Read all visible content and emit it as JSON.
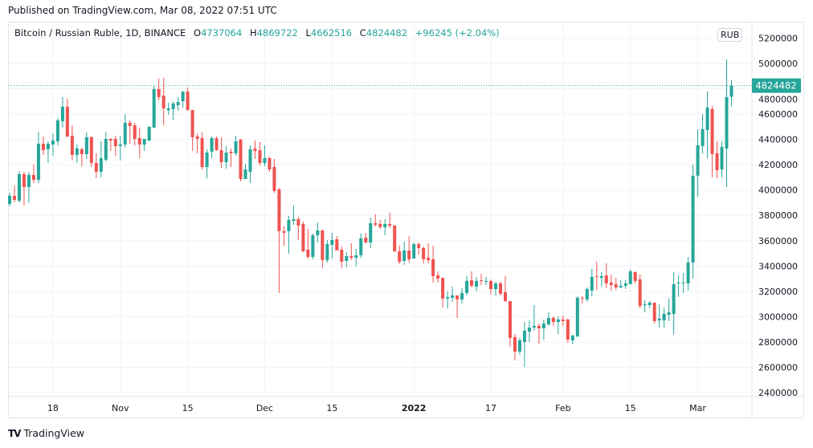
{
  "published": "Published on TradingView.com, Mar 08, 2022 07:51 UTC",
  "legend": {
    "symbol": "Bitcoin / Russian Ruble, 1D, BINANCE",
    "open_label": "O",
    "open": "4737064",
    "high_label": "H",
    "high": "4869722",
    "low_label": "L",
    "low": "4662516",
    "close_label": "C",
    "close": "4824482",
    "change": "+96245 (+2.04%)"
  },
  "currency_badge": "RUB",
  "last_price_label": "4824482",
  "footer": {
    "logo": "TV",
    "brand": "TradingView"
  },
  "colors": {
    "up": "#26a69a",
    "down": "#ef5350",
    "grid": "#f0f3fa",
    "text": "#131722"
  },
  "chart_data": {
    "type": "candlestick",
    "interval": "1D",
    "ylim": [
      2400000,
      5200000
    ],
    "y_ticks": [
      "2400000",
      "2600000",
      "2800000",
      "3000000",
      "3200000",
      "3400000",
      "3600000",
      "3800000",
      "4000000",
      "4200000",
      "4400000",
      "4600000",
      "4800000",
      "5000000",
      "5200000"
    ],
    "x_ticks": [
      {
        "label": "18",
        "date": "2021-10-18",
        "bold": false
      },
      {
        "label": "Nov",
        "date": "2021-11-01",
        "bold": false
      },
      {
        "label": "15",
        "date": "2021-11-15",
        "bold": false
      },
      {
        "label": "Dec",
        "date": "2021-12-01",
        "bold": false
      },
      {
        "label": "15",
        "date": "2021-12-15",
        "bold": false
      },
      {
        "label": "2022",
        "date": "2022-01-01",
        "bold": true
      },
      {
        "label": "17",
        "date": "2022-01-17",
        "bold": false
      },
      {
        "label": "Feb",
        "date": "2022-02-01",
        "bold": false
      },
      {
        "label": "15",
        "date": "2022-02-15",
        "bold": false
      },
      {
        "label": "Mar",
        "date": "2022-03-01",
        "bold": false
      }
    ],
    "last_price": 4824482,
    "candles_format": [
      "date",
      "open",
      "high",
      "low",
      "close"
    ],
    "candles": [
      [
        "2021-10-09",
        3891000,
        3979000,
        3872000,
        3954000
      ],
      [
        "2021-10-10",
        3954000,
        4036000,
        3903000,
        3922000
      ],
      [
        "2021-10-11",
        3916000,
        4150000,
        3903000,
        4125000
      ],
      [
        "2021-10-12",
        4125000,
        4144000,
        3878000,
        4024000
      ],
      [
        "2021-10-13",
        4024000,
        4144000,
        3897000,
        4119000
      ],
      [
        "2021-10-14",
        4119000,
        4201000,
        4055000,
        4081000
      ],
      [
        "2021-10-15",
        4081000,
        4461000,
        4055000,
        4366000
      ],
      [
        "2021-10-16",
        4366000,
        4423000,
        4277000,
        4315000
      ],
      [
        "2021-10-17",
        4322000,
        4385000,
        4214000,
        4366000
      ],
      [
        "2021-10-18",
        4360000,
        4448000,
        4271000,
        4391000
      ],
      [
        "2021-10-19",
        4385000,
        4569000,
        4353000,
        4550000
      ],
      [
        "2021-10-20",
        4543000,
        4734000,
        4493000,
        4658000
      ],
      [
        "2021-10-21",
        4658000,
        4721000,
        4417000,
        4423000
      ],
      [
        "2021-10-22",
        4429000,
        4512000,
        4233000,
        4277000
      ],
      [
        "2021-10-23",
        4277000,
        4360000,
        4214000,
        4328000
      ],
      [
        "2021-10-24",
        4322000,
        4334000,
        4188000,
        4284000
      ],
      [
        "2021-10-25",
        4284000,
        4455000,
        4246000,
        4417000
      ],
      [
        "2021-10-26",
        4417000,
        4423000,
        4182000,
        4214000
      ],
      [
        "2021-10-27",
        4214000,
        4290000,
        4093000,
        4144000
      ],
      [
        "2021-10-28",
        4144000,
        4385000,
        4100000,
        4252000
      ],
      [
        "2021-10-29",
        4239000,
        4455000,
        4226000,
        4404000
      ],
      [
        "2021-10-30",
        4404000,
        4410000,
        4309000,
        4391000
      ],
      [
        "2021-10-31",
        4404000,
        4429000,
        4271000,
        4347000
      ],
      [
        "2021-11-01",
        4347000,
        4429000,
        4233000,
        4360000
      ],
      [
        "2021-11-02",
        4360000,
        4601000,
        4334000,
        4531000
      ],
      [
        "2021-11-03",
        4531000,
        4550000,
        4366000,
        4505000
      ],
      [
        "2021-11-04",
        4512000,
        4531000,
        4353000,
        4404000
      ],
      [
        "2021-11-05",
        4410000,
        4493000,
        4252000,
        4360000
      ],
      [
        "2021-11-06",
        4360000,
        4404000,
        4309000,
        4404000
      ],
      [
        "2021-11-07",
        4391000,
        4505000,
        4385000,
        4499000
      ],
      [
        "2021-11-08",
        4493000,
        4822000,
        4493000,
        4797000
      ],
      [
        "2021-11-09",
        4797000,
        4880000,
        4709000,
        4734000
      ],
      [
        "2021-11-10",
        4746000,
        4886000,
        4512000,
        4645000
      ],
      [
        "2021-11-11",
        4632000,
        4689000,
        4594000,
        4645000
      ],
      [
        "2021-11-12",
        4639000,
        4702000,
        4550000,
        4683000
      ],
      [
        "2021-11-13",
        4670000,
        4734000,
        4626000,
        4696000
      ],
      [
        "2021-11-14",
        4702000,
        4778000,
        4651000,
        4778000
      ],
      [
        "2021-11-15",
        4778000,
        4810000,
        4626000,
        4632000
      ],
      [
        "2021-11-16",
        4632000,
        4632000,
        4309000,
        4417000
      ],
      [
        "2021-11-17",
        4423000,
        4448000,
        4290000,
        4404000
      ],
      [
        "2021-11-18",
        4410000,
        4455000,
        4163000,
        4182000
      ],
      [
        "2021-11-19",
        4182000,
        4322000,
        4093000,
        4296000
      ],
      [
        "2021-11-20",
        4303000,
        4423000,
        4252000,
        4410000
      ],
      [
        "2021-11-21",
        4410000,
        4423000,
        4309000,
        4315000
      ],
      [
        "2021-11-22",
        4315000,
        4417000,
        4176000,
        4220000
      ],
      [
        "2021-11-23",
        4220000,
        4347000,
        4169000,
        4296000
      ],
      [
        "2021-11-24",
        4303000,
        4328000,
        4182000,
        4290000
      ],
      [
        "2021-11-25",
        4290000,
        4429000,
        4271000,
        4385000
      ],
      [
        "2021-11-26",
        4398000,
        4404000,
        4068000,
        4087000
      ],
      [
        "2021-11-27",
        4087000,
        4208000,
        4087000,
        4163000
      ],
      [
        "2021-11-28",
        4144000,
        4353000,
        4055000,
        4322000
      ],
      [
        "2021-11-29",
        4328000,
        4391000,
        4246000,
        4309000
      ],
      [
        "2021-11-30",
        4315000,
        4379000,
        4195000,
        4214000
      ],
      [
        "2021-12-01",
        4214000,
        4353000,
        4188000,
        4252000
      ],
      [
        "2021-12-02",
        4252000,
        4265000,
        4144000,
        4163000
      ],
      [
        "2021-12-03",
        4182000,
        4246000,
        3979000,
        3992000
      ],
      [
        "2021-12-04",
        4005000,
        4017000,
        3187000,
        3675000
      ],
      [
        "2021-12-05",
        3675000,
        3713000,
        3561000,
        3662000
      ],
      [
        "2021-12-06",
        3675000,
        3795000,
        3497000,
        3764000
      ],
      [
        "2021-12-07",
        3757000,
        3878000,
        3726000,
        3770000
      ],
      [
        "2021-12-08",
        3770000,
        3789000,
        3605000,
        3719000
      ],
      [
        "2021-12-09",
        3732000,
        3751000,
        3510000,
        3516000
      ],
      [
        "2021-12-10",
        3529000,
        3694000,
        3459000,
        3472000
      ],
      [
        "2021-12-11",
        3472000,
        3656000,
        3453000,
        3643000
      ],
      [
        "2021-12-12",
        3643000,
        3745000,
        3586000,
        3681000
      ],
      [
        "2021-12-13",
        3681000,
        3688000,
        3383000,
        3447000
      ],
      [
        "2021-12-14",
        3447000,
        3605000,
        3428000,
        3573000
      ],
      [
        "2021-12-15",
        3567000,
        3662000,
        3459000,
        3605000
      ],
      [
        "2021-12-16",
        3611000,
        3637000,
        3523000,
        3523000
      ],
      [
        "2021-12-17",
        3529000,
        3554000,
        3383000,
        3434000
      ],
      [
        "2021-12-18",
        3440000,
        3510000,
        3389000,
        3478000
      ],
      [
        "2021-12-19",
        3478000,
        3580000,
        3447000,
        3466000
      ],
      [
        "2021-12-20",
        3466000,
        3535000,
        3396000,
        3485000
      ],
      [
        "2021-12-21",
        3485000,
        3656000,
        3466000,
        3618000
      ],
      [
        "2021-12-22",
        3624000,
        3662000,
        3580000,
        3586000
      ],
      [
        "2021-12-23",
        3586000,
        3783000,
        3542000,
        3738000
      ],
      [
        "2021-12-24",
        3738000,
        3808000,
        3713000,
        3726000
      ],
      [
        "2021-12-25",
        3732000,
        3764000,
        3694000,
        3707000
      ],
      [
        "2021-12-26",
        3707000,
        3770000,
        3643000,
        3732000
      ],
      [
        "2021-12-27",
        3732000,
        3821000,
        3700000,
        3719000
      ],
      [
        "2021-12-28",
        3719000,
        3726000,
        3510000,
        3516000
      ],
      [
        "2021-12-29",
        3516000,
        3561000,
        3415000,
        3434000
      ],
      [
        "2021-12-30",
        3440000,
        3592000,
        3409000,
        3523000
      ],
      [
        "2021-12-31",
        3523000,
        3637000,
        3428000,
        3453000
      ],
      [
        "2022-01-01",
        3459000,
        3586000,
        3459000,
        3573000
      ],
      [
        "2022-01-02",
        3573000,
        3586000,
        3491000,
        3542000
      ],
      [
        "2022-01-03",
        3542000,
        3554000,
        3421000,
        3453000
      ],
      [
        "2022-01-04",
        3466000,
        3580000,
        3421000,
        3447000
      ],
      [
        "2022-01-05",
        3453000,
        3561000,
        3269000,
        3320000
      ],
      [
        "2022-01-06",
        3326000,
        3358000,
        3269000,
        3301000
      ],
      [
        "2022-01-07",
        3307000,
        3307000,
        3073000,
        3143000
      ],
      [
        "2022-01-08",
        3143000,
        3199000,
        3066000,
        3155000
      ],
      [
        "2022-01-09",
        3149000,
        3237000,
        3117000,
        3168000
      ],
      [
        "2022-01-10",
        3168000,
        3168000,
        2990000,
        3136000
      ],
      [
        "2022-01-11",
        3136000,
        3225000,
        3104000,
        3187000
      ],
      [
        "2022-01-12",
        3187000,
        3320000,
        3168000,
        3282000
      ],
      [
        "2022-01-13",
        3288000,
        3358000,
        3231000,
        3244000
      ],
      [
        "2022-01-14",
        3237000,
        3313000,
        3199000,
        3282000
      ],
      [
        "2022-01-15",
        3288000,
        3339000,
        3250000,
        3282000
      ],
      [
        "2022-01-16",
        3276000,
        3313000,
        3250000,
        3282000
      ],
      [
        "2022-01-17",
        3282000,
        3294000,
        3174000,
        3218000
      ],
      [
        "2022-01-18",
        3218000,
        3276000,
        3168000,
        3263000
      ],
      [
        "2022-01-19",
        3263000,
        3276000,
        3168000,
        3180000
      ],
      [
        "2022-01-20",
        3193000,
        3320000,
        3117000,
        3123000
      ],
      [
        "2022-01-21",
        3123000,
        3123000,
        2762000,
        2832000
      ],
      [
        "2022-01-22",
        2838000,
        2863000,
        2654000,
        2724000
      ],
      [
        "2022-01-23",
        2724000,
        2832000,
        2698000,
        2813000
      ],
      [
        "2022-01-24",
        2800000,
        2958000,
        2603000,
        2889000
      ],
      [
        "2022-01-25",
        2882000,
        2971000,
        2800000,
        2914000
      ],
      [
        "2022-01-26",
        2914000,
        3091000,
        2889000,
        2927000
      ],
      [
        "2022-01-27",
        2927000,
        2946000,
        2781000,
        2908000
      ],
      [
        "2022-01-28",
        2908000,
        2977000,
        2819000,
        2946000
      ],
      [
        "2022-01-29",
        2939000,
        3034000,
        2927000,
        2990000
      ],
      [
        "2022-01-30",
        2990000,
        3003000,
        2927000,
        2958000
      ],
      [
        "2022-01-31",
        2958000,
        3003000,
        2863000,
        2977000
      ],
      [
        "2022-02-01",
        2977000,
        3009000,
        2927000,
        2965000
      ],
      [
        "2022-02-02",
        2977000,
        2984000,
        2794000,
        2819000
      ],
      [
        "2022-02-03",
        2813000,
        2857000,
        2781000,
        2851000
      ],
      [
        "2022-02-04",
        2845000,
        3161000,
        2839000,
        3149000
      ],
      [
        "2022-02-05",
        3149000,
        3161000,
        3104000,
        3143000
      ],
      [
        "2022-02-06",
        3136000,
        3231000,
        3117000,
        3218000
      ],
      [
        "2022-02-07",
        3206000,
        3377000,
        3161000,
        3314000
      ],
      [
        "2022-02-08",
        3320000,
        3434000,
        3212000,
        3314000
      ],
      [
        "2022-02-09",
        3307000,
        3352000,
        3237000,
        3320000
      ],
      [
        "2022-02-10",
        3326000,
        3421000,
        3225000,
        3263000
      ],
      [
        "2022-02-11",
        3269000,
        3333000,
        3206000,
        3250000
      ],
      [
        "2022-02-12",
        3256000,
        3307000,
        3212000,
        3231000
      ],
      [
        "2022-02-13",
        3231000,
        3288000,
        3225000,
        3244000
      ],
      [
        "2022-02-14",
        3244000,
        3288000,
        3218000,
        3263000
      ],
      [
        "2022-02-15",
        3256000,
        3371000,
        3256000,
        3358000
      ],
      [
        "2022-02-16",
        3352000,
        3358000,
        3263000,
        3282000
      ],
      [
        "2022-02-17",
        3295000,
        3333000,
        3066000,
        3085000
      ],
      [
        "2022-02-18",
        3091000,
        3129000,
        3034000,
        3098000
      ],
      [
        "2022-02-19",
        3091000,
        3123000,
        3066000,
        3111000
      ],
      [
        "2022-02-20",
        3111000,
        3111000,
        2946000,
        2965000
      ],
      [
        "2022-02-21",
        2971000,
        3098000,
        2914000,
        2984000
      ],
      [
        "2022-02-22",
        2971000,
        3073000,
        2914000,
        3022000
      ],
      [
        "2022-02-23",
        3016000,
        3143000,
        2965000,
        3034000
      ],
      [
        "2022-02-24",
        3022000,
        3352000,
        2858000,
        3256000
      ],
      [
        "2022-02-25",
        3263000,
        3326000,
        3155000,
        3269000
      ],
      [
        "2022-02-26",
        3263000,
        3345000,
        3187000,
        3269000
      ],
      [
        "2022-02-27",
        3263000,
        3472000,
        3206000,
        3428000
      ],
      [
        "2022-02-28",
        3428000,
        4201000,
        3301000,
        4113000
      ],
      [
        "2022-03-01",
        4113000,
        4480000,
        3947000,
        4353000
      ],
      [
        "2022-03-02",
        4347000,
        4601000,
        4290000,
        4480000
      ],
      [
        "2022-03-03",
        4474000,
        4778000,
        4252000,
        4651000
      ],
      [
        "2022-03-04",
        4639000,
        4664000,
        4100000,
        4284000
      ],
      [
        "2022-03-05",
        4290000,
        4385000,
        4093000,
        4157000
      ],
      [
        "2022-03-06",
        4163000,
        4385000,
        4100000,
        4341000
      ],
      [
        "2022-03-07",
        4328000,
        5032000,
        4024000,
        4734000
      ],
      [
        "2022-03-08",
        4737064,
        4869722,
        4662516,
        4824482
      ]
    ]
  }
}
